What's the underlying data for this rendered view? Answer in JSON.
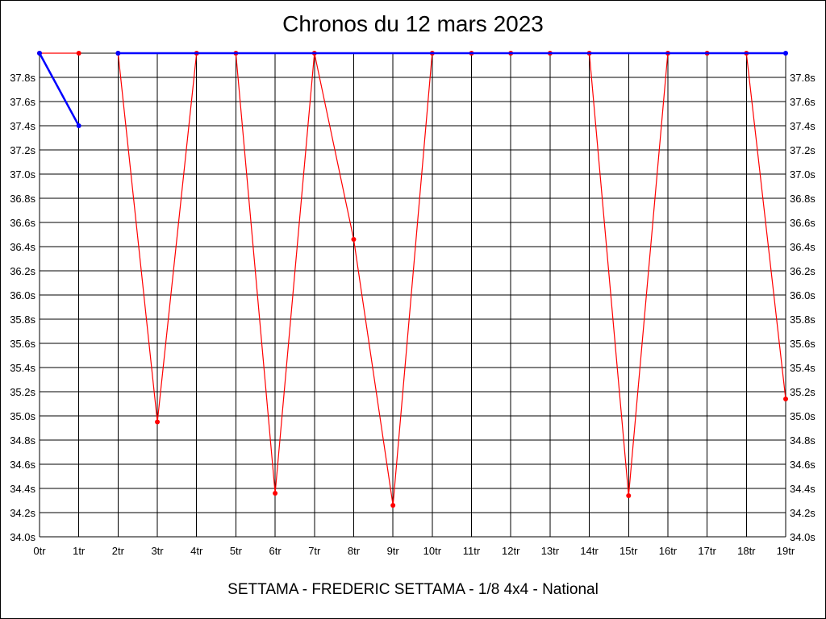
{
  "chart_data": {
    "type": "line",
    "title": "Chronos du 12 mars 2023",
    "footer": "SETTAMA - FREDERIC SETTAMA - 1/8 4x4 - National",
    "x_categories": [
      "0tr",
      "1tr",
      "2tr",
      "3tr",
      "4tr",
      "5tr",
      "6tr",
      "7tr",
      "8tr",
      "9tr",
      "10tr",
      "11tr",
      "12tr",
      "13tr",
      "14tr",
      "15tr",
      "16tr",
      "17tr",
      "18tr",
      "19tr"
    ],
    "y_ticks": [
      "34.0s",
      "34.2s",
      "34.4s",
      "34.6s",
      "34.8s",
      "35.0s",
      "35.2s",
      "35.4s",
      "35.6s",
      "35.8s",
      "36.0s",
      "36.2s",
      "36.4s",
      "36.6s",
      "36.8s",
      "37.0s",
      "37.2s",
      "37.4s",
      "37.6s",
      "37.8s"
    ],
    "ylim": [
      34.0,
      38.0
    ],
    "grid": true,
    "series": [
      {
        "color": "#0000ff",
        "points": [
          {
            "x": 0,
            "y": 38.0
          },
          {
            "x": 1,
            "y": 37.4
          },
          null,
          {
            "x": 2,
            "y": 38.0
          },
          {
            "x": 19,
            "y": 38.0
          }
        ]
      },
      {
        "color": "#ff0000",
        "points": [
          {
            "x": 0,
            "y": 38.0
          },
          {
            "x": 1,
            "y": 38.0
          },
          null,
          {
            "x": 2,
            "y": 38.0
          },
          {
            "x": 3,
            "y": 34.95
          },
          {
            "x": 4,
            "y": 38.0
          },
          {
            "x": 5,
            "y": 38.0
          },
          {
            "x": 6,
            "y": 34.36
          },
          {
            "x": 7,
            "y": 38.0
          },
          {
            "x": 8,
            "y": 36.46
          },
          {
            "x": 9,
            "y": 34.26
          },
          {
            "x": 10,
            "y": 38.0
          },
          {
            "x": 11,
            "y": 38.0
          },
          {
            "x": 12,
            "y": 38.0
          },
          {
            "x": 13,
            "y": 38.0
          },
          {
            "x": 14,
            "y": 38.0
          },
          {
            "x": 15,
            "y": 34.34
          },
          {
            "x": 16,
            "y": 38.0
          },
          {
            "x": 17,
            "y": 38.0
          },
          {
            "x": 18,
            "y": 38.0
          },
          {
            "x": 19,
            "y": 35.14
          }
        ]
      }
    ]
  }
}
